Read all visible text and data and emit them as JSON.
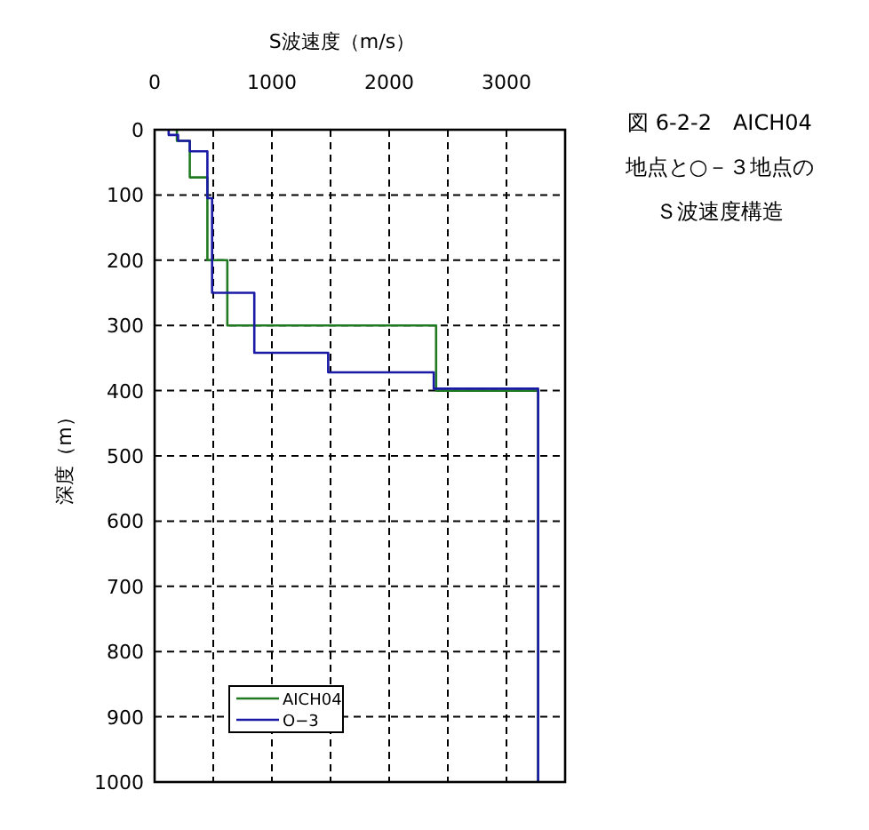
{
  "chart_data": {
    "type": "line",
    "title": "図 6-2-2　AICH04",
    "subtitle": "地点と○－３地点のＳ波速度構造",
    "xlabel": "S波速度（m/s）",
    "ylabel": "深度（m）",
    "xlim": [
      0,
      3500
    ],
    "xticks": [
      0,
      {
        "value": 500,
        "label": null
      },
      1000,
      {
        "value": 1500,
        "label": null
      },
      2000,
      {
        "value": 2500,
        "label": null
      },
      3000,
      {
        "value": 3500,
        "label": null
      }
    ],
    "ylim": [
      1000,
      0
    ],
    "yticks": [
      0,
      100,
      200,
      300,
      400,
      500,
      600,
      700,
      800,
      900,
      1000
    ],
    "grid": true,
    "legend": "bottom left",
    "line_style": "solid",
    "marker": "none",
    "series": [
      {
        "name": "AICH04",
        "color": "#217a21",
        "x": [
          190,
          190,
          300,
          300,
          450,
          450,
          620,
          620,
          2400,
          2400,
          3270,
          3270
        ],
        "values": [
          0,
          17,
          17,
          73,
          73,
          200,
          200,
          300,
          300,
          400,
          400,
          1000
        ]
      },
      {
        "name": "O−3",
        "color": "#1a1aa6",
        "x": [
          120,
          120,
          200,
          200,
          300,
          300,
          450,
          450,
          490,
          490,
          850,
          850,
          1480,
          1480,
          2380,
          2380,
          3270,
          3270
        ],
        "values": [
          0,
          8,
          8,
          17,
          17,
          33,
          33,
          105,
          105,
          250,
          250,
          342,
          342,
          372,
          372,
          397,
          397,
          1000
        ]
      }
    ]
  }
}
